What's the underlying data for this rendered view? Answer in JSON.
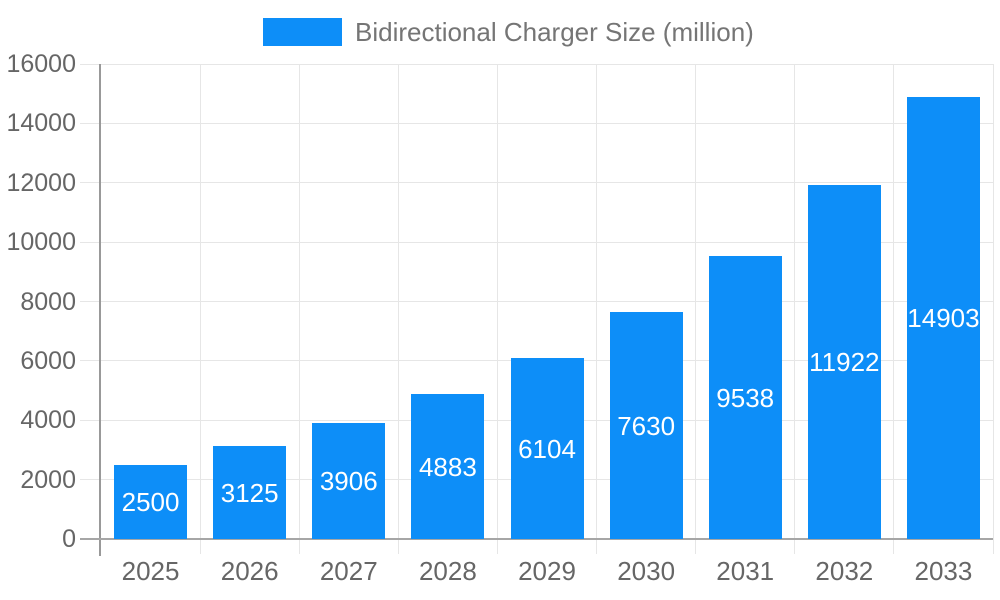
{
  "chart_data": {
    "type": "bar",
    "title": "",
    "legend": {
      "label": "Bidirectional Charger Size (million)",
      "position": "top"
    },
    "categories": [
      "2025",
      "2026",
      "2027",
      "2028",
      "2029",
      "2030",
      "2031",
      "2032",
      "2033"
    ],
    "series": [
      {
        "name": "Bidirectional Charger Size (million)",
        "color": "#0d8ef8",
        "values": [
          2500,
          3125,
          3906,
          4883,
          6104,
          7630,
          9538,
          11922,
          14903
        ]
      }
    ],
    "bar_labels": [
      2500,
      3125,
      3906,
      4883,
      6104,
      7630,
      9538,
      11922,
      14903
    ],
    "bar_label_color": "#ffffff",
    "xlabel": "",
    "ylabel": "",
    "ylim": [
      0,
      16000
    ],
    "ytick_interval": 2000,
    "yticks": [
      0,
      2000,
      4000,
      6000,
      8000,
      10000,
      12000,
      14000,
      16000
    ],
    "grid": true,
    "colors": {
      "bar": "#0d8ef8",
      "gridline": "#e6e6e6",
      "axis_line": "#999999",
      "tick_text": "#666666",
      "legend_text": "#757575",
      "background": "#ffffff"
    }
  }
}
